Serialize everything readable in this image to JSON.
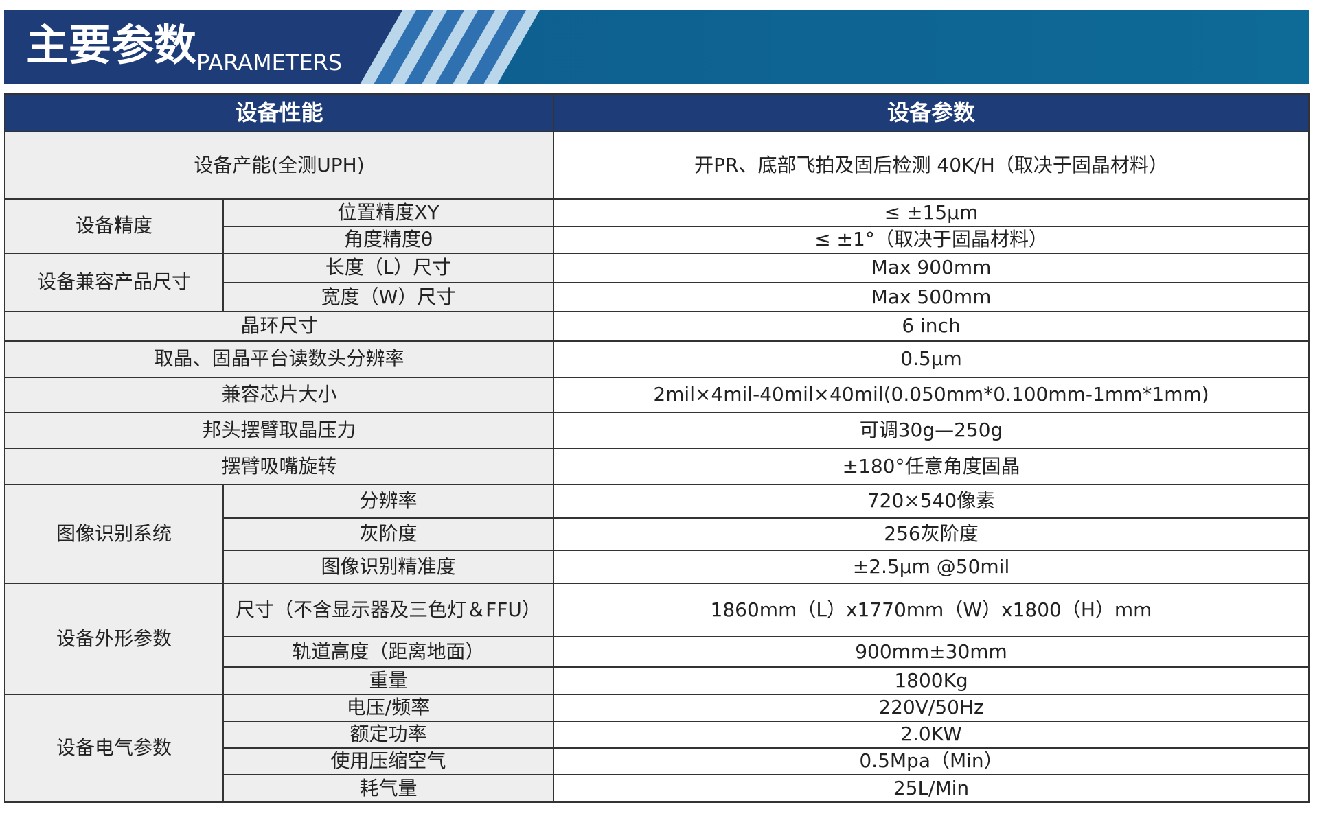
{
  "header": {
    "title": "主要参数",
    "subtitle": "PARAMETERS"
  },
  "table": {
    "columns": [
      "设备性能",
      "设备参数"
    ],
    "rows": [
      {
        "label": "设备产能(全测UPH)",
        "value": "开PR、底部飞拍及固后检测 40K/H（取决于固晶材料）"
      },
      {
        "group": "设备精度",
        "items": [
          {
            "label": "位置精度XY",
            "value": "≤ ±15μm"
          },
          {
            "label": "角度精度θ",
            "value": "≤ ±1°（取决于固晶材料）"
          }
        ]
      },
      {
        "group": "设备兼容产品尺寸",
        "items": [
          {
            "label": "长度（L）尺寸",
            "value": "Max 900mm"
          },
          {
            "label": "宽度（W）尺寸",
            "value": "Max 500mm"
          }
        ]
      },
      {
        "label": "晶环尺寸",
        "value": "6 inch"
      },
      {
        "label": "取晶、固晶平台读数头分辨率",
        "value": "0.5μm"
      },
      {
        "label": "兼容芯片大小",
        "value": "2mil×4mil-40mil×40mil(0.050mm*0.100mm-1mm*1mm)"
      },
      {
        "label": "邦头摆臂取晶压力",
        "value": "可调30g—250g"
      },
      {
        "label": "摆臂吸嘴旋转",
        "value": "±180°任意角度固晶"
      },
      {
        "group": "图像识别系统",
        "items": [
          {
            "label": "分辨率",
            "value": "720×540像素"
          },
          {
            "label": "灰阶度",
            "value": "256灰阶度"
          },
          {
            "label": "图像识别精准度",
            "value": "±2.5μm @50mil"
          }
        ]
      },
      {
        "group": "设备外形参数",
        "items": [
          {
            "label": "尺寸（不含显示器及三色灯＆FFU）",
            "value": "1860mm（L）x1770mm（W）x1800（H）mm"
          },
          {
            "label": "轨道高度（距离地面）",
            "value": "900mm±30mm"
          },
          {
            "label": "重量",
            "value": "1800Kg"
          }
        ]
      },
      {
        "group": "设备电气参数",
        "items": [
          {
            "label": "电压/频率",
            "value": "220V/50Hz"
          },
          {
            "label": "额定功率",
            "value": "2.0KW"
          },
          {
            "label": "使用压缩空气",
            "value": "0.5Mpa（Min）"
          },
          {
            "label": "耗气量",
            "value": "25L/Min"
          }
        ]
      }
    ]
  }
}
